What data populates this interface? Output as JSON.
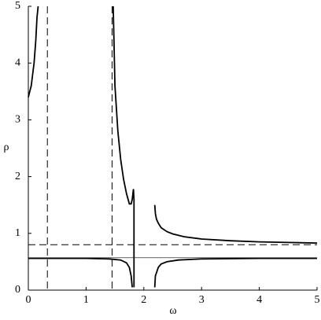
{
  "chart_data": {
    "type": "line",
    "xlabel": "ω",
    "ylabel": "ρ",
    "xlim": [
      0,
      5
    ],
    "ylim": [
      0,
      5
    ],
    "xticks": [
      0,
      1,
      2,
      3,
      4,
      5
    ],
    "yticks": [
      0,
      1,
      2,
      3,
      4,
      5
    ],
    "grid": false,
    "series": [
      {
        "color": "#000000",
        "x": [
          0,
          0.05,
          0.1,
          0.13,
          0.15,
          0.17
        ],
        "values": [
          3.4,
          3.6,
          4.0,
          4.4,
          4.8,
          5
        ]
      },
      {
        "color": "#000000",
        "x": [
          1.47,
          1.5,
          1.55,
          1.6,
          1.65,
          1.7,
          1.75,
          1.78,
          1.8,
          1.82,
          1.83,
          1.83
        ],
        "values": [
          5,
          3.6,
          2.8,
          2.3,
          1.95,
          1.7,
          1.52,
          1.52,
          1.6,
          1.78,
          1.6,
          0.05
        ]
      },
      {
        "color": "#000000",
        "x": [
          0,
          0.5,
          1,
          1.4,
          1.6,
          1.7,
          1.75,
          1.78,
          1.8
        ],
        "values": [
          0.56,
          0.56,
          0.56,
          0.55,
          0.53,
          0.48,
          0.4,
          0.25,
          0.05
        ]
      },
      {
        "color": "#000000",
        "x": [
          2.19,
          2.2,
          2.22,
          2.25,
          2.3,
          2.4,
          2.5,
          2.7,
          3,
          3.5,
          4,
          4.5,
          5
        ],
        "values": [
          1.5,
          1.35,
          1.25,
          1.18,
          1.1,
          1.03,
          0.99,
          0.94,
          0.9,
          0.87,
          0.85,
          0.84,
          0.83
        ]
      },
      {
        "color": "#000000",
        "x": [
          2.19,
          2.2,
          2.25,
          2.3,
          2.4,
          2.6,
          3,
          4,
          5
        ],
        "values": [
          0.05,
          0.25,
          0.4,
          0.46,
          0.5,
          0.53,
          0.55,
          0.56,
          0.56
        ]
      }
    ],
    "hlines": [
      {
        "value": 0.8,
        "style": "dashed"
      },
      {
        "value": 0.57,
        "style": "solid"
      }
    ],
    "vlines": [
      {
        "value": 0.33,
        "style": "dashed"
      },
      {
        "value": 1.45,
        "style": "dashed"
      }
    ]
  }
}
